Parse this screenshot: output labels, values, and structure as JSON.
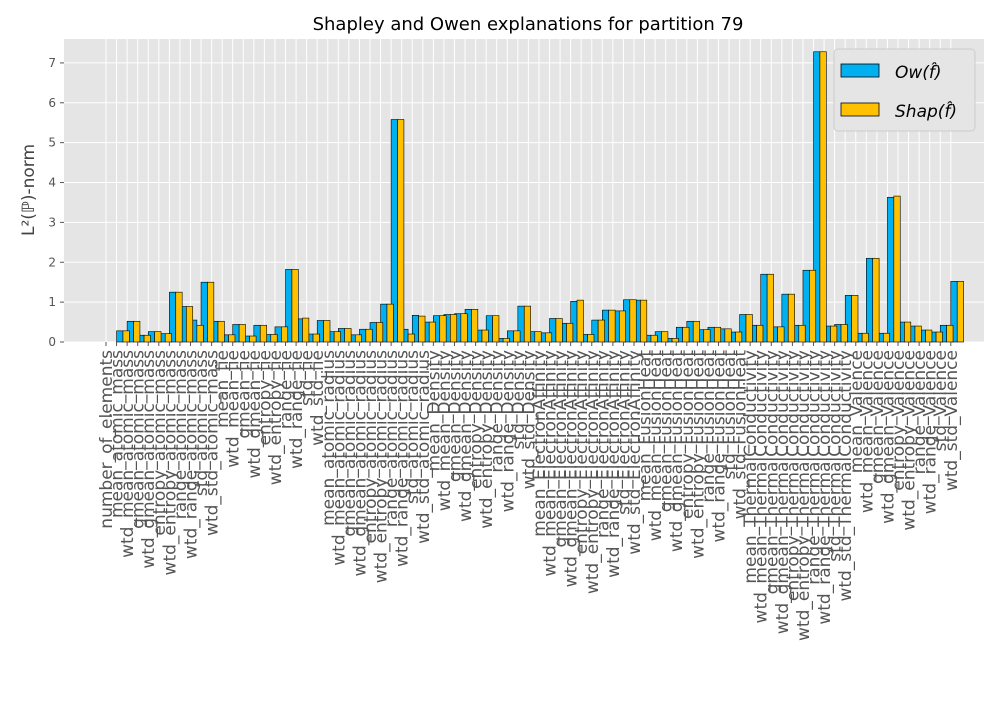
{
  "chart_data": {
    "type": "bar",
    "title": "Shapley and Owen explanations for partition 79",
    "xlabel": "",
    "ylabel": "L²(ℙ)-norm",
    "ylim": [
      0,
      7.6
    ],
    "yticks": [
      0,
      1,
      2,
      3,
      4,
      5,
      6,
      7
    ],
    "grid": true,
    "legend_position": "top-right",
    "categories": [
      "number_of_elements",
      "mean_atomic_mass",
      "wtd_mean_atomic_mass",
      "gmean_atomic_mass",
      "wtd_gmean_atomic_mass",
      "entropy_atomic_mass",
      "wtd_entropy_atomic_mass",
      "range_atomic_mass",
      "wtd_range_atomic_mass",
      "std_atomic_mass",
      "wtd_std_atomic_mass",
      "mean_fie",
      "wtd_mean_fie",
      "gmean_fie",
      "wtd_gmean_fie",
      "entropy_fie",
      "wtd_entropy_fie",
      "range_fie",
      "wtd_range_fie",
      "std_fie",
      "wtd_std_fie",
      "mean_atomic_radius",
      "wtd_mean_atomic_radius",
      "gmean_atomic_radius",
      "wtd_gmean_atomic_radius",
      "entropy_atomic_radius",
      "wtd_entropy_atomic_radius",
      "range_atomic_radius",
      "wtd_range_atomic_radius",
      "std_atomic_radius",
      "wtd_std_atomic_radius",
      "mean_Density",
      "wtd_mean_Density",
      "gmean_Density",
      "wtd_gmean_Density",
      "entropy_Density",
      "wtd_entropy_Density",
      "range_Density",
      "wtd_range_Density",
      "std_Density",
      "wtd_std_Density",
      "mean_ElectronAffinity",
      "wtd_mean_ElectronAffinity",
      "gmean_ElectronAffinity",
      "wtd_gmean_ElectronAffinity",
      "entropy_ElectronAffinity",
      "wtd_entropy_ElectronAffinity",
      "range_ElectronAffinity",
      "wtd_range_ElectronAffinity",
      "std_ElectronAffinity",
      "wtd_std_ElectronAffinity",
      "mean_FusionHeat",
      "wtd_mean_FusionHeat",
      "gmean_FusionHeat",
      "wtd_gmean_FusionHeat",
      "entropy_FusionHeat",
      "wtd_entropy_FusionHeat",
      "range_FusionHeat",
      "wtd_range_FusionHeat",
      "std_FusionHeat",
      "wtd_std_FusionHeat",
      "mean_ThermalConductivity",
      "wtd_mean_ThermalConductivity",
      "gmean_ThermalConductivity",
      "wtd_gmean_ThermalConductivity",
      "entropy_ThermalConductivity",
      "wtd_entropy_ThermalConductivity",
      "range_ThermalConductivity",
      "wtd_range_ThermalConductivity",
      "std_ThermalConductivity",
      "wtd_std_ThermalConductivity",
      "mean_Valence",
      "wtd_mean_Valence",
      "gmean_Valence",
      "wtd_gmean_Valence",
      "entropy_Valence",
      "wtd_entropy_Valence",
      "range_Valence",
      "wtd_range_Valence",
      "std_Valence",
      "wtd_std_Valence"
    ],
    "series": [
      {
        "name": "Ow(f̂)",
        "color": "#00b0f0",
        "values": [
          0.0,
          0.28,
          0.52,
          0.17,
          0.26,
          0.21,
          1.25,
          0.89,
          0.55,
          1.5,
          0.52,
          0.18,
          0.44,
          0.15,
          0.42,
          0.19,
          0.38,
          1.82,
          0.58,
          0.2,
          0.54,
          0.26,
          0.34,
          0.18,
          0.32,
          0.49,
          0.95,
          5.58,
          0.32,
          0.67,
          0.5,
          0.66,
          0.69,
          0.71,
          0.82,
          0.3,
          0.66,
          0.09,
          0.28,
          0.9,
          0.26,
          0.23,
          0.59,
          0.47,
          1.02,
          0.19,
          0.55,
          0.8,
          0.78,
          1.06,
          1.05,
          0.17,
          0.26,
          0.09,
          0.37,
          0.52,
          0.31,
          0.37,
          0.33,
          0.25,
          0.69,
          0.42,
          1.7,
          0.38,
          1.2,
          0.42,
          1.8,
          7.28,
          0.4,
          0.44,
          1.17,
          0.22,
          2.1,
          0.22,
          3.63,
          0.5,
          0.4,
          0.3,
          0.25,
          0.42,
          1.52
        ]
      },
      {
        "name": "Shap(f̂)",
        "color": "#ffc000",
        "values": [
          0.0,
          0.28,
          0.52,
          0.17,
          0.26,
          0.21,
          1.25,
          0.89,
          0.42,
          1.5,
          0.52,
          0.18,
          0.44,
          0.15,
          0.42,
          0.19,
          0.38,
          1.82,
          0.6,
          0.2,
          0.54,
          0.26,
          0.34,
          0.18,
          0.32,
          0.49,
          0.95,
          5.58,
          0.2,
          0.65,
          0.5,
          0.66,
          0.69,
          0.71,
          0.82,
          0.3,
          0.66,
          0.09,
          0.28,
          0.9,
          0.26,
          0.23,
          0.59,
          0.47,
          1.05,
          0.19,
          0.55,
          0.8,
          0.78,
          1.06,
          1.05,
          0.17,
          0.26,
          0.09,
          0.37,
          0.52,
          0.31,
          0.37,
          0.33,
          0.25,
          0.69,
          0.42,
          1.7,
          0.38,
          1.2,
          0.42,
          1.8,
          7.28,
          0.4,
          0.44,
          1.17,
          0.22,
          2.1,
          0.22,
          3.66,
          0.5,
          0.4,
          0.3,
          0.25,
          0.42,
          1.52
        ]
      }
    ]
  }
}
